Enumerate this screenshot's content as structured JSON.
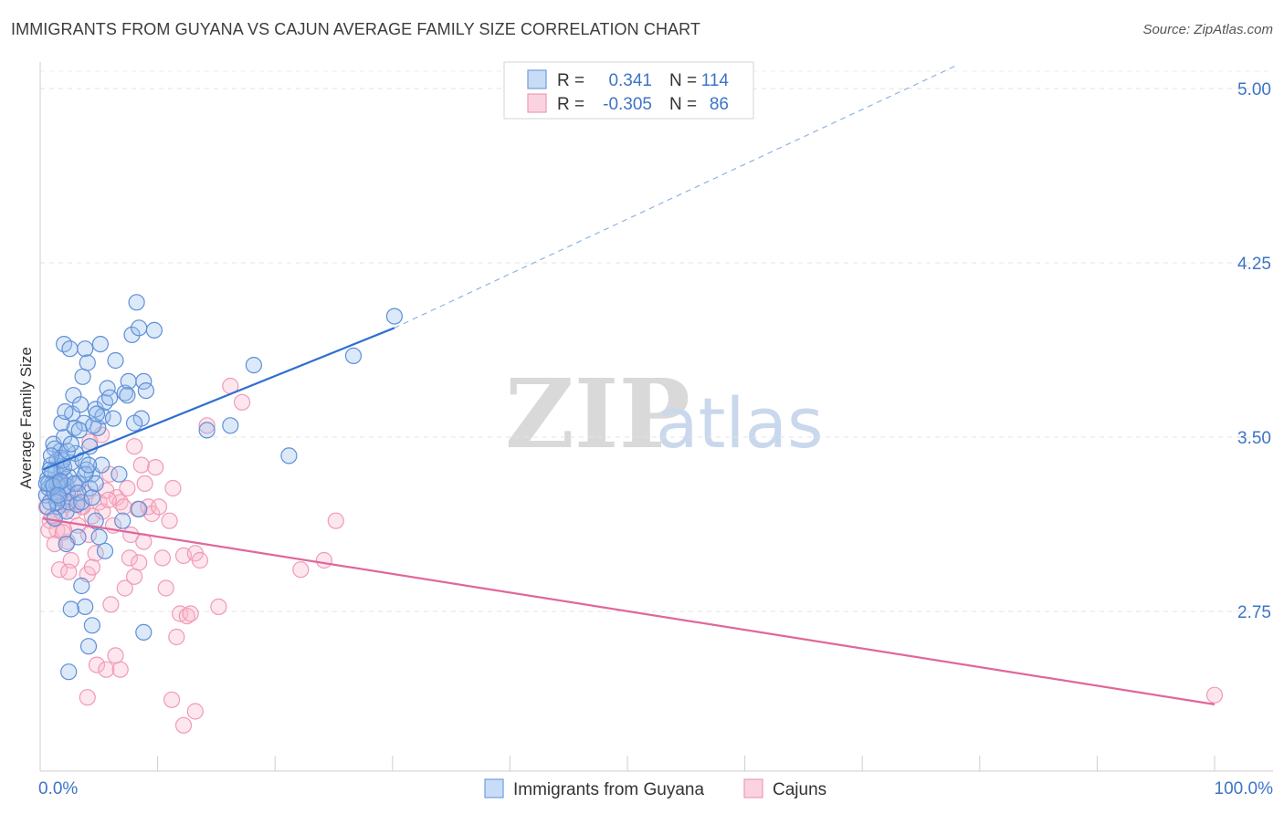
{
  "header": {
    "title": "IMMIGRANTS FROM GUYANA VS CAJUN AVERAGE FAMILY SIZE CORRELATION CHART",
    "source": "Source: ZipAtlas.com"
  },
  "watermark": {
    "zip": "ZIP",
    "atlas": "atlas"
  },
  "legend": {
    "rows": [
      {
        "r_label": "R =",
        "r_value": "0.341",
        "n_label": "N =",
        "n_value": "114",
        "color": "#6f9ee0"
      },
      {
        "r_label": "R =",
        "r_value": "-0.305",
        "n_label": "N =",
        "n_value": "86",
        "color": "#f09ab6"
      }
    ]
  },
  "bottom_legend": [
    {
      "label": "Immigrants from Guyana",
      "color": "#6f9ee0"
    },
    {
      "label": "Cajuns",
      "color": "#f09ab6"
    }
  ],
  "chart_data": {
    "type": "scatter",
    "title": "IMMIGRANTS FROM GUYANA VS CAJUN AVERAGE FAMILY SIZE CORRELATION CHART",
    "xlabel": "",
    "ylabel": "Average Family Size",
    "xlim": [
      0,
      100
    ],
    "ylim": [
      2.05,
      5.1
    ],
    "x_tick_labels": [
      "0.0%",
      "100.0%"
    ],
    "y_ticks": [
      2.75,
      3.5,
      4.25,
      5.0
    ],
    "y_tick_labels": [
      "2.75",
      "3.50",
      "4.25",
      "5.00"
    ],
    "series": [
      {
        "name": "Immigrants from Guyana",
        "color": "#6f9ee0",
        "line_color": "#2f6fd0",
        "trend": {
          "x0": 0,
          "y0": 3.36,
          "x1": 30,
          "y1": 3.97,
          "dash_to_x": 78,
          "dash_to_y": 5.1
        },
        "points": [
          [
            0.3,
            3.25
          ],
          [
            0.4,
            3.32
          ],
          [
            0.5,
            3.28
          ],
          [
            0.6,
            3.22
          ],
          [
            0.7,
            3.38
          ],
          [
            0.8,
            3.3
          ],
          [
            0.9,
            3.47
          ],
          [
            1.0,
            3.26
          ],
          [
            1.1,
            3.35
          ],
          [
            1.2,
            3.4
          ],
          [
            1.3,
            3.2
          ],
          [
            1.4,
            3.3
          ],
          [
            1.5,
            3.44
          ],
          [
            1.6,
            3.36
          ],
          [
            1.7,
            3.28
          ],
          [
            1.8,
            3.5
          ],
          [
            1.9,
            3.32
          ],
          [
            2.0,
            3.18
          ],
          [
            2.1,
            3.26
          ],
          [
            2.2,
            3.33
          ],
          [
            0.5,
            3.3
          ],
          [
            0.8,
            3.35
          ],
          [
            1.0,
            3.45
          ],
          [
            1.2,
            3.3
          ],
          [
            1.4,
            3.24
          ],
          [
            1.6,
            3.41
          ],
          [
            1.8,
            3.37
          ],
          [
            2.0,
            3.29
          ],
          [
            2.2,
            3.22
          ],
          [
            2.4,
            3.39
          ],
          [
            2.5,
            3.6
          ],
          [
            2.6,
            3.68
          ],
          [
            2.8,
            3.43
          ],
          [
            3.0,
            3.3
          ],
          [
            3.2,
            3.64
          ],
          [
            3.4,
            3.76
          ],
          [
            3.5,
            3.56
          ],
          [
            3.6,
            3.88
          ],
          [
            3.8,
            3.82
          ],
          [
            4.0,
            3.46
          ],
          [
            4.2,
            3.34
          ],
          [
            4.5,
            3.62
          ],
          [
            4.7,
            3.54
          ],
          [
            4.9,
            3.9
          ],
          [
            5.1,
            3.59
          ],
          [
            5.3,
            3.65
          ],
          [
            5.5,
            3.71
          ],
          [
            5.7,
            3.67
          ],
          [
            6.0,
            3.58
          ],
          [
            6.2,
            3.83
          ],
          [
            7.0,
            3.69
          ],
          [
            7.3,
            3.74
          ],
          [
            7.6,
            3.94
          ],
          [
            8.0,
            4.08
          ],
          [
            8.2,
            3.97
          ],
          [
            8.4,
            3.58
          ],
          [
            8.6,
            3.74
          ],
          [
            8.8,
            3.7
          ],
          [
            3.0,
            3.07
          ],
          [
            3.3,
            2.86
          ],
          [
            3.6,
            2.77
          ],
          [
            3.9,
            2.6
          ],
          [
            4.2,
            2.69
          ],
          [
            4.5,
            3.14
          ],
          [
            4.8,
            3.07
          ],
          [
            5.0,
            3.38
          ],
          [
            5.3,
            3.01
          ],
          [
            2.0,
            3.04
          ],
          [
            2.2,
            2.49
          ],
          [
            2.4,
            2.76
          ],
          [
            1.8,
            3.9
          ],
          [
            2.3,
            3.88
          ],
          [
            2.7,
            3.54
          ],
          [
            3.1,
            3.53
          ],
          [
            3.4,
            3.4
          ],
          [
            3.7,
            3.36
          ],
          [
            2.9,
            3.21
          ],
          [
            4.0,
            3.28
          ],
          [
            4.3,
            3.55
          ],
          [
            4.6,
            3.6
          ],
          [
            6.5,
            3.34
          ],
          [
            6.8,
            3.14
          ],
          [
            7.2,
            3.68
          ],
          [
            7.8,
            3.56
          ],
          [
            8.2,
            3.19
          ],
          [
            8.6,
            2.66
          ],
          [
            9.5,
            3.96
          ],
          [
            14.0,
            3.53
          ],
          [
            16.0,
            3.55
          ],
          [
            18.0,
            3.81
          ],
          [
            21.0,
            3.42
          ],
          [
            26.5,
            3.85
          ],
          [
            30.0,
            4.02
          ],
          [
            0.3,
            3.3
          ],
          [
            0.6,
            3.36
          ],
          [
            0.9,
            3.29
          ],
          [
            1.2,
            3.22
          ],
          [
            1.5,
            3.31
          ],
          [
            1.7,
            3.4
          ],
          [
            2.1,
            3.44
          ],
          [
            2.4,
            3.47
          ],
          [
            2.7,
            3.3
          ],
          [
            3.0,
            3.26
          ],
          [
            3.3,
            3.22
          ],
          [
            3.6,
            3.34
          ],
          [
            3.9,
            3.38
          ],
          [
            4.2,
            3.24
          ],
          [
            4.5,
            3.3
          ],
          [
            0.4,
            3.2
          ],
          [
            0.7,
            3.42
          ],
          [
            1.0,
            3.15
          ],
          [
            1.3,
            3.25
          ],
          [
            1.6,
            3.56
          ],
          [
            1.9,
            3.61
          ]
        ]
      },
      {
        "name": "Cajuns",
        "color": "#f09ab6",
        "line_color": "#e0679a",
        "trend": {
          "x0": 0,
          "y0": 3.15,
          "x1": 100,
          "y1": 2.35
        },
        "points": [
          [
            0.3,
            3.2
          ],
          [
            0.6,
            3.14
          ],
          [
            0.9,
            3.25
          ],
          [
            1.2,
            3.1
          ],
          [
            1.5,
            3.18
          ],
          [
            1.8,
            3.22
          ],
          [
            2.1,
            3.05
          ],
          [
            2.4,
            2.97
          ],
          [
            2.7,
            3.3
          ],
          [
            3.0,
            3.12
          ],
          [
            3.3,
            3.2
          ],
          [
            3.6,
            3.26
          ],
          [
            3.9,
            3.08
          ],
          [
            4.2,
            3.16
          ],
          [
            4.5,
            3.0
          ],
          [
            4.8,
            3.22
          ],
          [
            5.1,
            3.18
          ],
          [
            5.4,
            3.27
          ],
          [
            5.7,
            3.34
          ],
          [
            6.0,
            3.12
          ],
          [
            6.3,
            3.24
          ],
          [
            6.6,
            3.22
          ],
          [
            6.9,
            3.2
          ],
          [
            7.2,
            3.28
          ],
          [
            7.5,
            3.08
          ],
          [
            7.8,
            3.46
          ],
          [
            8.1,
            3.19
          ],
          [
            8.4,
            3.38
          ],
          [
            8.7,
            3.3
          ],
          [
            9.0,
            3.2
          ],
          [
            9.3,
            3.17
          ],
          [
            9.6,
            3.37
          ],
          [
            9.9,
            3.2
          ],
          [
            10.2,
            2.98
          ],
          [
            10.5,
            2.85
          ],
          [
            10.8,
            3.14
          ],
          [
            11.1,
            3.28
          ],
          [
            11.4,
            2.64
          ],
          [
            11.7,
            2.74
          ],
          [
            12.0,
            2.99
          ],
          [
            12.3,
            2.73
          ],
          [
            12.6,
            2.74
          ],
          [
            13.0,
            3.0
          ],
          [
            13.4,
            2.97
          ],
          [
            14.0,
            3.55
          ],
          [
            15.0,
            2.77
          ],
          [
            1.0,
            3.04
          ],
          [
            1.4,
            2.93
          ],
          [
            1.8,
            3.1
          ],
          [
            2.2,
            2.92
          ],
          [
            2.6,
            3.25
          ],
          [
            3.0,
            3.22
          ],
          [
            3.4,
            3.2
          ],
          [
            3.8,
            2.91
          ],
          [
            4.2,
            2.94
          ],
          [
            4.6,
            2.52
          ],
          [
            5.0,
            3.51
          ],
          [
            5.4,
            2.5
          ],
          [
            5.8,
            2.78
          ],
          [
            6.2,
            2.56
          ],
          [
            6.6,
            2.5
          ],
          [
            7.0,
            2.85
          ],
          [
            7.4,
            2.98
          ],
          [
            7.8,
            2.9
          ],
          [
            8.2,
            2.96
          ],
          [
            3.8,
            2.38
          ],
          [
            8.6,
            3.05
          ],
          [
            11.0,
            2.37
          ],
          [
            12.0,
            2.26
          ],
          [
            13.0,
            2.32
          ],
          [
            16.0,
            3.72
          ],
          [
            17.0,
            3.65
          ],
          [
            22.0,
            2.93
          ],
          [
            24.0,
            2.97
          ],
          [
            25.0,
            3.14
          ],
          [
            100.0,
            2.39
          ],
          [
            0.5,
            3.1
          ],
          [
            0.8,
            3.16
          ],
          [
            1.1,
            3.28
          ],
          [
            1.4,
            3.33
          ],
          [
            1.7,
            3.09
          ],
          [
            2.0,
            3.21
          ],
          [
            2.3,
            3.26
          ],
          [
            2.6,
            3.18
          ],
          [
            4.0,
            3.48
          ],
          [
            5.6,
            3.23
          ]
        ]
      }
    ]
  }
}
